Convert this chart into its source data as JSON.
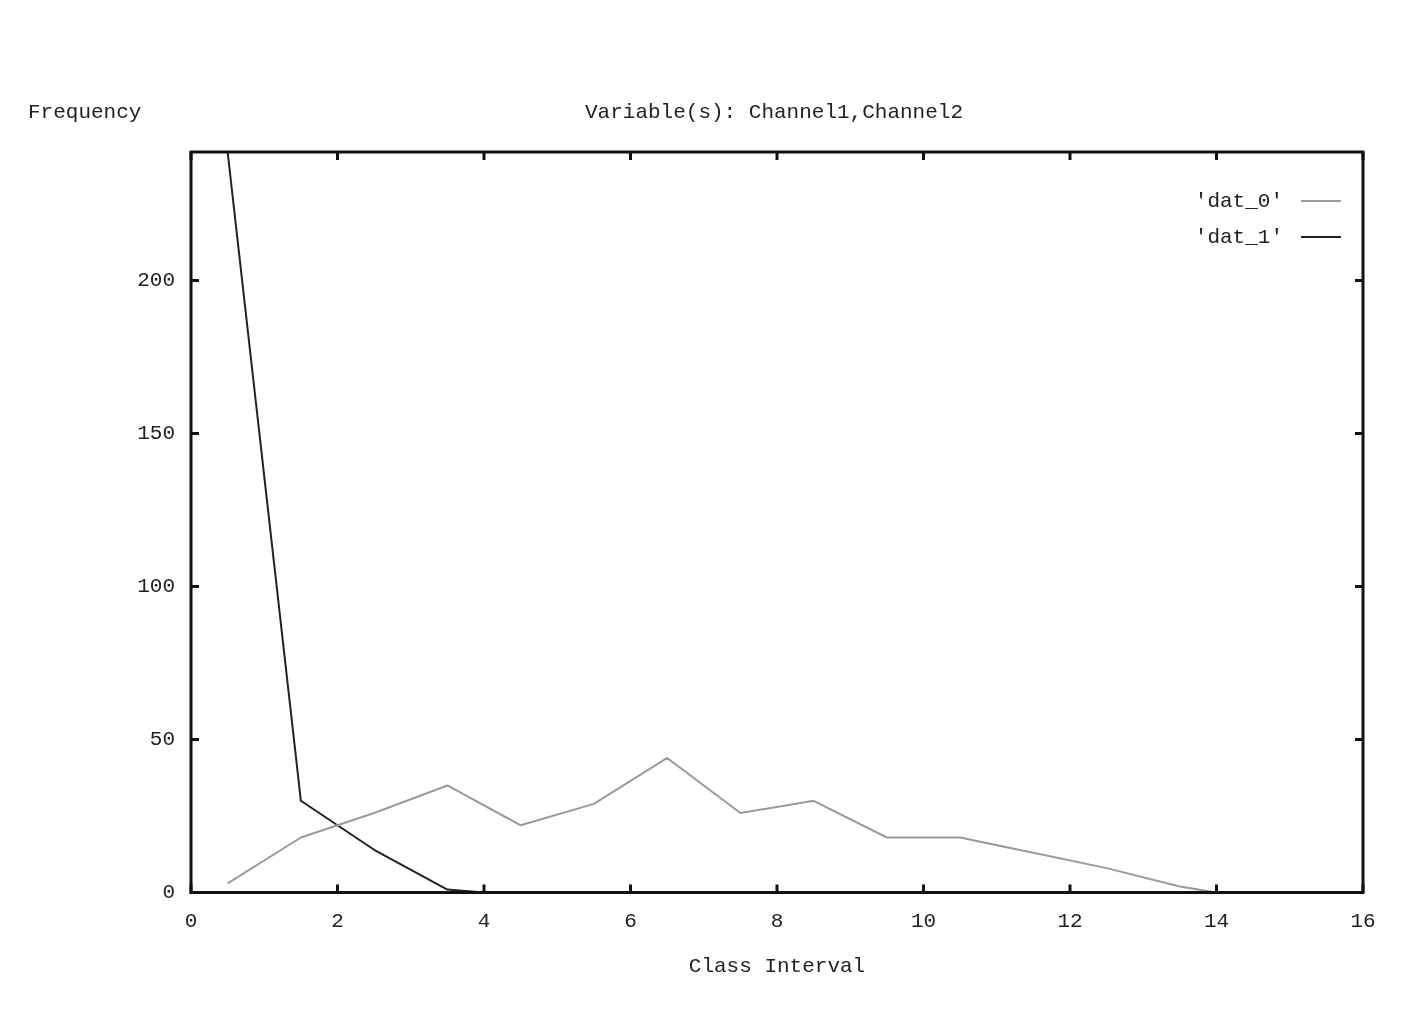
{
  "chart_data": {
    "type": "line",
    "title": "Variable(s): Channel1,Channel2",
    "xlabel": "Class Interval",
    "ylabel": "Frequency",
    "xlim": [
      0,
      16
    ],
    "xticks": [
      0,
      2,
      4,
      6,
      8,
      10,
      12,
      14,
      16
    ],
    "ylim": [
      0,
      242
    ],
    "yticks": [
      0,
      50,
      100,
      150,
      200
    ],
    "grid": false,
    "legend": "top right",
    "marker": "none",
    "series": [
      {
        "name": "'dat_0'",
        "color": "#9a9a9a",
        "x": [
          0.5,
          1.5,
          2.5,
          3.5,
          4.5,
          5.5,
          6.5,
          7.5,
          8.5,
          9.5,
          10.5,
          11.5,
          12.5,
          13.5,
          14
        ],
        "values": [
          3,
          18,
          26,
          35,
          22,
          29,
          44,
          26,
          30,
          18,
          18,
          13,
          8,
          2,
          0
        ]
      },
      {
        "name": "'dat_1'",
        "color": "#222222",
        "x": [
          0.5,
          1.5,
          2.5,
          3.5,
          4
        ],
        "values": [
          242,
          30,
          14,
          1,
          0
        ]
      }
    ]
  }
}
